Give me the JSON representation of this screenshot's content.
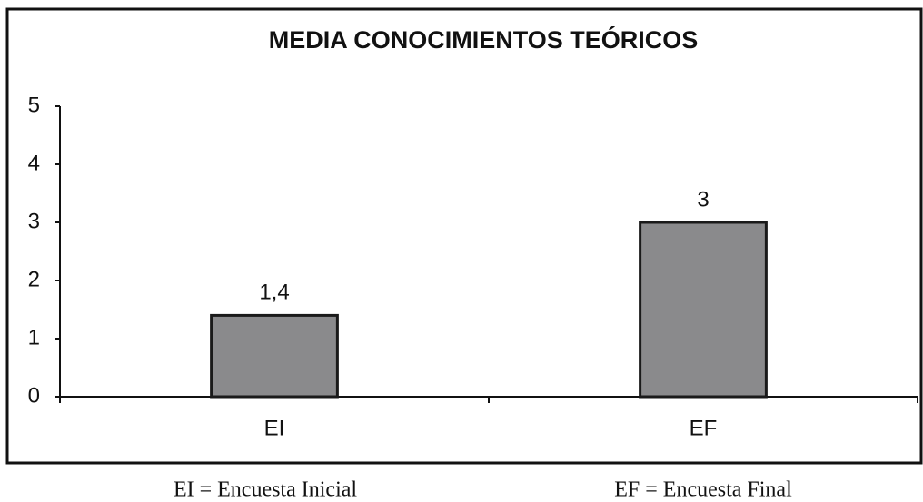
{
  "chart_data": {
    "type": "bar",
    "title": "MEDIA CONOCIMIENTOS TEÓRICOS",
    "categories": [
      "EI",
      "EF"
    ],
    "values": [
      1.4,
      3
    ],
    "value_labels": [
      "1,4",
      "3"
    ],
    "color": "#8a8a8c",
    "ylim": [
      0,
      5
    ],
    "yticks": [
      0,
      1,
      2,
      3,
      4,
      5
    ],
    "grid": false,
    "annotations": [
      "EI = Encuesta Inicial",
      "EF = Encuesta Final"
    ]
  }
}
